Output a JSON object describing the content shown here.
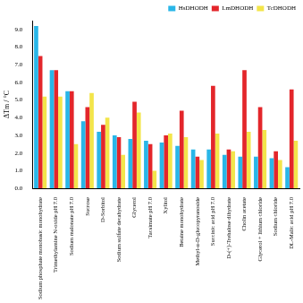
{
  "chart_data": {
    "type": "bar",
    "y_label": "ΔTm / °C",
    "categories": [
      "Sodium phosphate monobasic monohydrate",
      "Trimethylamine N-oxide pH 7.0",
      "Sodium malonate pH 7.0",
      "Sucrose",
      "D-Sorbitol",
      "Sodium sulfate decahydrate",
      "Glycerol",
      "Tacsimate pH 7.0",
      "Xylitol",
      "Betaine monohydrate",
      "Methyl-α-D-glucopyranoside",
      "Succinic acid pH 7.0",
      "D-(+)-Trehalose dihydrate",
      "Cholin acetate",
      "Glycerol + lithium chloride",
      "Sodium chloride",
      "DL-Malic acid pH 7.0"
    ],
    "series": [
      {
        "name": "HsDHODH",
        "color": "#29b6e8",
        "values": [
          9.2,
          6.7,
          5.5,
          3.8,
          3.2,
          3.0,
          2.8,
          2.7,
          2.6,
          2.4,
          2.2,
          2.2,
          1.9,
          1.8,
          1.8,
          1.7,
          1.2
        ]
      },
      {
        "name": "LmDHODH",
        "color": "#e3262b",
        "values": [
          7.5,
          6.7,
          5.5,
          4.6,
          3.6,
          2.9,
          4.9,
          2.5,
          3.0,
          4.4,
          1.8,
          5.8,
          2.2,
          6.7,
          4.6,
          2.1,
          5.6
        ]
      },
      {
        "name": "TcDHODH",
        "color": "#f3e54a",
        "values": [
          5.2,
          5.2,
          2.5,
          5.4,
          4.0,
          1.9,
          4.3,
          1.0,
          3.1,
          2.9,
          1.6,
          3.1,
          2.1,
          3.2,
          3.3,
          1.6,
          2.7
        ]
      }
    ],
    "ylim": [
      0,
      9.5
    ],
    "yticks": [
      {
        "value": 0,
        "label": "0.0"
      },
      {
        "value": 1,
        "label": "1.0"
      },
      {
        "value": 2,
        "label": "2.0"
      },
      {
        "value": 3,
        "label": "3.0"
      },
      {
        "value": 4,
        "label": "4.0"
      },
      {
        "value": 5,
        "label": "5.0"
      },
      {
        "value": 6,
        "label": "6.0"
      },
      {
        "value": 7,
        "label": "7.0"
      },
      {
        "value": 8,
        "label": "8.0"
      },
      {
        "value": 9,
        "label": "9.0"
      }
    ],
    "grid": false,
    "legend": "upper right"
  }
}
